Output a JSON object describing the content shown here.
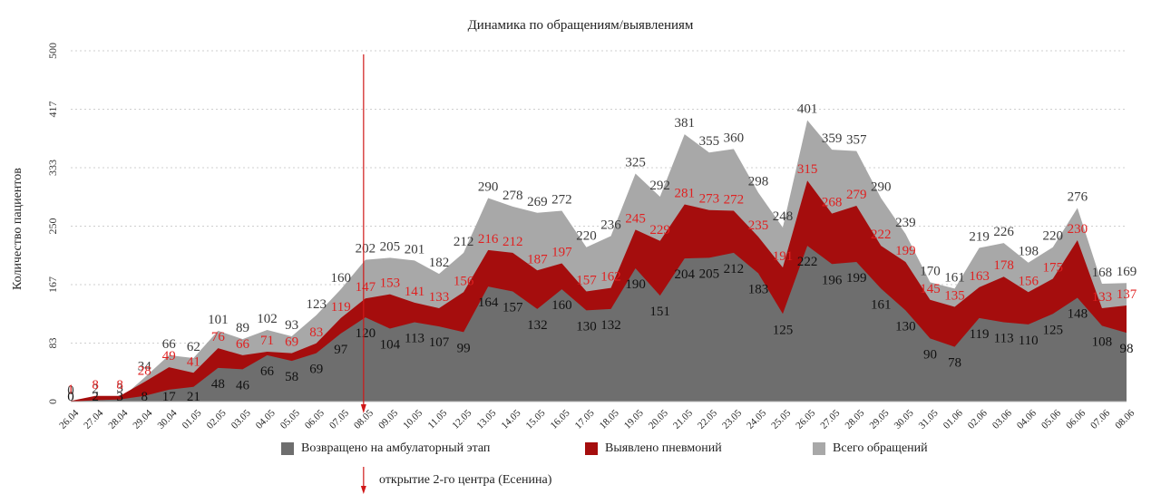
{
  "chart_data": {
    "type": "area",
    "title": "Динамика по обращениям/выявлениям",
    "ylabel": "Количество пациентов",
    "xlabel": "",
    "ylim": [
      0,
      500
    ],
    "yticks": [
      "0",
      "83",
      "167",
      "250",
      "333",
      "417",
      "500"
    ],
    "grid": true,
    "legend_position": "bottom",
    "categories": [
      "26.04",
      "27.04",
      "28.04",
      "29.04",
      "30.04",
      "01.05",
      "02.05",
      "03.05",
      "04.05",
      "05.05",
      "06.05",
      "07.05",
      "08.05",
      "09.05",
      "10.05",
      "11.05",
      "12.05",
      "13.05",
      "14.05",
      "15.05",
      "16.05",
      "17.05",
      "18.05",
      "19.05",
      "20.05",
      "21.05",
      "22.05",
      "23.05",
      "24.05",
      "25.05",
      "26.05",
      "27.05",
      "28.05",
      "29.05",
      "30.05",
      "31.05",
      "01.06",
      "02.06",
      "03.06",
      "04.06",
      "05.06",
      "06.06",
      "07.06",
      "08.06"
    ],
    "series": [
      {
        "name": "Всего обращений",
        "color": "#a8a8a8",
        "label_color": "#3a3a3a",
        "values": [
          0,
          2,
          3,
          34,
          66,
          62,
          101,
          89,
          102,
          93,
          123,
          160,
          202,
          205,
          201,
          182,
          212,
          290,
          278,
          269,
          272,
          220,
          236,
          325,
          292,
          381,
          355,
          360,
          298,
          248,
          401,
          359,
          357,
          290,
          239,
          170,
          161,
          219,
          226,
          198,
          220,
          276,
          168,
          169
        ]
      },
      {
        "name": "Выявлено пневмоний",
        "color": "#a50d0d",
        "label_color": "#e02020",
        "values": [
          1,
          8,
          8,
          28,
          49,
          41,
          76,
          66,
          71,
          69,
          83,
          119,
          147,
          153,
          141,
          133,
          156,
          216,
          212,
          187,
          197,
          157,
          162,
          245,
          229,
          281,
          273,
          272,
          235,
          191,
          315,
          268,
          279,
          222,
          199,
          145,
          135,
          163,
          178,
          156,
          175,
          230,
          133,
          137
        ]
      },
      {
        "name": "Возвращено на амбулаторный этап",
        "color": "#6e6e6e",
        "label_color": "#111111",
        "values": [
          0,
          2,
          3,
          8,
          17,
          21,
          48,
          46,
          66,
          58,
          69,
          97,
          120,
          104,
          113,
          107,
          99,
          164,
          157,
          132,
          160,
          130,
          132,
          190,
          151,
          204,
          205,
          212,
          183,
          125,
          222,
          196,
          199,
          161,
          130,
          90,
          78,
          119,
          113,
          110,
          125,
          148,
          108,
          98
        ]
      }
    ],
    "legend": [
      {
        "label": "Возвращено на амбулаторный этап",
        "color": "#6e6e6e"
      },
      {
        "label": "Выявлено пневмоний",
        "color": "#a50d0d"
      },
      {
        "label": "Всего обращений",
        "color": "#a8a8a8"
      }
    ],
    "marker": {
      "category": "08.05",
      "label": "открытие 2-го центра (Есенина)",
      "color": "#d01818"
    }
  }
}
